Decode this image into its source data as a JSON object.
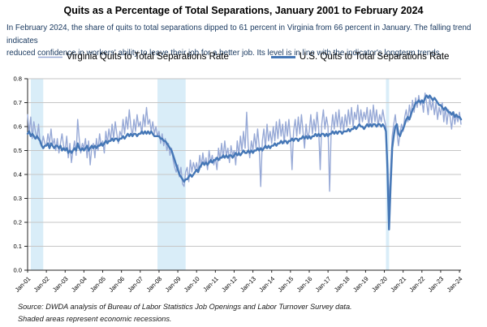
{
  "title": "Quits as a Percentage of Total Separations, January 2001 to February 2024",
  "subtitle_lines": {
    "line1": "In February 2024, the share of quits to total separations dipped to 61 percent in Virginia from 66 percent in January. The falling trend indicates",
    "line2": "reduced confidence in workers' ability to leave their job for a better job. Its level is in line with the indicator's longterm trends."
  },
  "legend": {
    "items": [
      {
        "label": "Virginia Quits to Total Separations Rate",
        "color": "#97a9d6"
      },
      {
        "label": "U.S. Quits to Total Separations Rate",
        "color": "#4577b6"
      }
    ]
  },
  "footer_lines": {
    "source": "Source: DWDA analysis of Bureau of Labor Statistics Job Openings and Labor Turnover Survey data.",
    "note": "Shaded areas represent economic recessions."
  },
  "chart_data": {
    "type": "line",
    "x_start": "Jan-01",
    "x_end": "Feb-24",
    "x_tick_labels": [
      "Jan-01",
      "Jan-02",
      "Jan-03",
      "Jan-04",
      "Jan-05",
      "Jan-06",
      "Jan-07",
      "Jan-08",
      "Jan-09",
      "Jan-10",
      "Jan-11",
      "Jan-12",
      "Jan-13",
      "Jan-14",
      "Jan-15",
      "Jan-16",
      "Jan-17",
      "Jan-18",
      "Jan-19",
      "Jan-20",
      "Jan-21",
      "Jan-22",
      "Jan-23",
      "Jan-24"
    ],
    "y_ticks": [
      "0.0",
      "0.1",
      "0.2",
      "0.3",
      "0.4",
      "0.5",
      "0.6",
      "0.7",
      "0.8"
    ],
    "ylim": [
      0,
      0.8
    ],
    "grid": true,
    "grid_color": "#c6c6c6",
    "axis_color": "#262626",
    "recession_color": "#d9edf8",
    "recessions": [
      {
        "start": 2,
        "end": 10
      },
      {
        "start": 83,
        "end": 101
      },
      {
        "start": 229,
        "end": 231
      }
    ],
    "series": [
      {
        "name": "Virginia Quits to Total Separations Rate",
        "color": "#97a9d6",
        "width": 1.4,
        "values": [
          0.65,
          0.57,
          0.64,
          0.55,
          0.62,
          0.58,
          0.55,
          0.61,
          0.53,
          0.52,
          0.56,
          0.53,
          0.52,
          0.57,
          0.53,
          0.59,
          0.52,
          0.55,
          0.5,
          0.55,
          0.49,
          0.53,
          0.57,
          0.52,
          0.5,
          0.56,
          0.47,
          0.53,
          0.45,
          0.5,
          0.54,
          0.48,
          0.63,
          0.55,
          0.49,
          0.53,
          0.51,
          0.55,
          0.47,
          0.54,
          0.44,
          0.51,
          0.53,
          0.47,
          0.55,
          0.5,
          0.57,
          0.52,
          0.54,
          0.49,
          0.58,
          0.53,
          0.59,
          0.54,
          0.61,
          0.55,
          0.62,
          0.57,
          0.53,
          0.58,
          0.56,
          0.63,
          0.57,
          0.64,
          0.59,
          0.67,
          0.6,
          0.56,
          0.63,
          0.58,
          0.65,
          0.6,
          0.62,
          0.57,
          0.65,
          0.6,
          0.68,
          0.61,
          0.63,
          0.58,
          0.62,
          0.57,
          0.6,
          0.56,
          0.58,
          0.53,
          0.57,
          0.52,
          0.55,
          0.5,
          0.53,
          0.48,
          0.51,
          0.46,
          0.43,
          0.41,
          0.44,
          0.39,
          0.43,
          0.36,
          0.35,
          0.41,
          0.43,
          0.37,
          0.46,
          0.41,
          0.45,
          0.42,
          0.45,
          0.41,
          0.48,
          0.43,
          0.49,
          0.44,
          0.47,
          0.42,
          0.5,
          0.45,
          0.48,
          0.44,
          0.47,
          0.42,
          0.51,
          0.46,
          0.53,
          0.47,
          0.54,
          0.48,
          0.51,
          0.45,
          0.52,
          0.48,
          0.5,
          0.44,
          0.54,
          0.48,
          0.56,
          0.5,
          0.58,
          0.51,
          0.66,
          0.52,
          0.47,
          0.54,
          0.5,
          0.57,
          0.51,
          0.59,
          0.52,
          0.35,
          0.54,
          0.59,
          0.51,
          0.61,
          0.54,
          0.58,
          0.53,
          0.6,
          0.54,
          0.62,
          0.55,
          0.63,
          0.56,
          0.61,
          0.53,
          0.62,
          0.56,
          0.63,
          0.55,
          0.42,
          0.58,
          0.63,
          0.56,
          0.64,
          0.57,
          0.65,
          0.58,
          0.51,
          0.61,
          0.55,
          0.58,
          0.65,
          0.57,
          0.63,
          0.58,
          0.66,
          0.59,
          0.42,
          0.61,
          0.67,
          0.59,
          0.64,
          0.6,
          0.33,
          0.58,
          0.65,
          0.59,
          0.66,
          0.6,
          0.67,
          0.59,
          0.64,
          0.58,
          0.65,
          0.6,
          0.67,
          0.61,
          0.68,
          0.6,
          0.66,
          0.63,
          0.69,
          0.61,
          0.67,
          0.62,
          0.66,
          0.63,
          0.68,
          0.6,
          0.67,
          0.61,
          0.69,
          0.62,
          0.67,
          0.6,
          0.65,
          0.62,
          0.67,
          0.63,
          0.6,
          0.45,
          0.28,
          0.42,
          0.56,
          0.61,
          0.65,
          0.58,
          0.52,
          0.57,
          0.61,
          0.58,
          0.64,
          0.67,
          0.62,
          0.69,
          0.64,
          0.71,
          0.66,
          0.72,
          0.68,
          0.73,
          0.69,
          0.71,
          0.66,
          0.74,
          0.7,
          0.65,
          0.72,
          0.67,
          0.71,
          0.65,
          0.7,
          0.63,
          0.68,
          0.65,
          0.7,
          0.62,
          0.68,
          0.61,
          0.67,
          0.64,
          0.59,
          0.66,
          0.61,
          0.65,
          0.62,
          0.66,
          0.61
        ]
      },
      {
        "name": "U.S. Quits to Total Separations Rate",
        "color": "#4577b6",
        "width": 2.4,
        "values": [
          0.57,
          0.58,
          0.56,
          0.57,
          0.56,
          0.55,
          0.56,
          0.55,
          0.54,
          0.52,
          0.51,
          0.52,
          0.52,
          0.53,
          0.51,
          0.53,
          0.52,
          0.51,
          0.52,
          0.52,
          0.51,
          0.52,
          0.5,
          0.51,
          0.5,
          0.51,
          0.49,
          0.5,
          0.49,
          0.5,
          0.51,
          0.5,
          0.53,
          0.51,
          0.5,
          0.51,
          0.5,
          0.51,
          0.52,
          0.5,
          0.51,
          0.52,
          0.51,
          0.52,
          0.51,
          0.52,
          0.52,
          0.53,
          0.52,
          0.53,
          0.54,
          0.53,
          0.54,
          0.54,
          0.55,
          0.54,
          0.55,
          0.55,
          0.54,
          0.55,
          0.55,
          0.56,
          0.55,
          0.56,
          0.57,
          0.56,
          0.57,
          0.56,
          0.57,
          0.57,
          0.56,
          0.57,
          0.57,
          0.58,
          0.57,
          0.58,
          0.57,
          0.58,
          0.57,
          0.58,
          0.57,
          0.56,
          0.56,
          0.56,
          0.56,
          0.55,
          0.55,
          0.54,
          0.54,
          0.53,
          0.52,
          0.51,
          0.5,
          0.48,
          0.46,
          0.44,
          0.42,
          0.4,
          0.39,
          0.38,
          0.37,
          0.38,
          0.38,
          0.39,
          0.4,
          0.39,
          0.4,
          0.41,
          0.42,
          0.41,
          0.43,
          0.44,
          0.45,
          0.44,
          0.45,
          0.44,
          0.45,
          0.46,
          0.45,
          0.46,
          0.46,
          0.47,
          0.46,
          0.47,
          0.47,
          0.48,
          0.47,
          0.48,
          0.47,
          0.48,
          0.48,
          0.47,
          0.48,
          0.49,
          0.48,
          0.49,
          0.48,
          0.49,
          0.5,
          0.49,
          0.49,
          0.5,
          0.49,
          0.5,
          0.49,
          0.5,
          0.5,
          0.51,
          0.5,
          0.51,
          0.5,
          0.51,
          0.52,
          0.51,
          0.52,
          0.51,
          0.52,
          0.52,
          0.53,
          0.52,
          0.53,
          0.53,
          0.54,
          0.53,
          0.54,
          0.54,
          0.53,
          0.54,
          0.54,
          0.55,
          0.54,
          0.55,
          0.55,
          0.54,
          0.55,
          0.55,
          0.56,
          0.55,
          0.56,
          0.55,
          0.56,
          0.55,
          0.56,
          0.56,
          0.57,
          0.56,
          0.57,
          0.56,
          0.57,
          0.57,
          0.56,
          0.57,
          0.56,
          0.57,
          0.57,
          0.58,
          0.57,
          0.58,
          0.57,
          0.58,
          0.58,
          0.57,
          0.58,
          0.58,
          0.58,
          0.59,
          0.58,
          0.59,
          0.59,
          0.6,
          0.59,
          0.6,
          0.61,
          0.6,
          0.6,
          0.59,
          0.6,
          0.61,
          0.6,
          0.61,
          0.6,
          0.61,
          0.61,
          0.6,
          0.61,
          0.61,
          0.6,
          0.61,
          0.6,
          0.58,
          0.42,
          0.17,
          0.35,
          0.51,
          0.56,
          0.6,
          0.61,
          0.57,
          0.56,
          0.58,
          0.59,
          0.61,
          0.63,
          0.64,
          0.63,
          0.65,
          0.67,
          0.68,
          0.7,
          0.7,
          0.71,
          0.7,
          0.71,
          0.7,
          0.72,
          0.73,
          0.72,
          0.73,
          0.72,
          0.71,
          0.72,
          0.71,
          0.7,
          0.69,
          0.69,
          0.68,
          0.67,
          0.68,
          0.67,
          0.66,
          0.66,
          0.65,
          0.66,
          0.64,
          0.65,
          0.64,
          0.64,
          0.63
        ]
      }
    ]
  }
}
